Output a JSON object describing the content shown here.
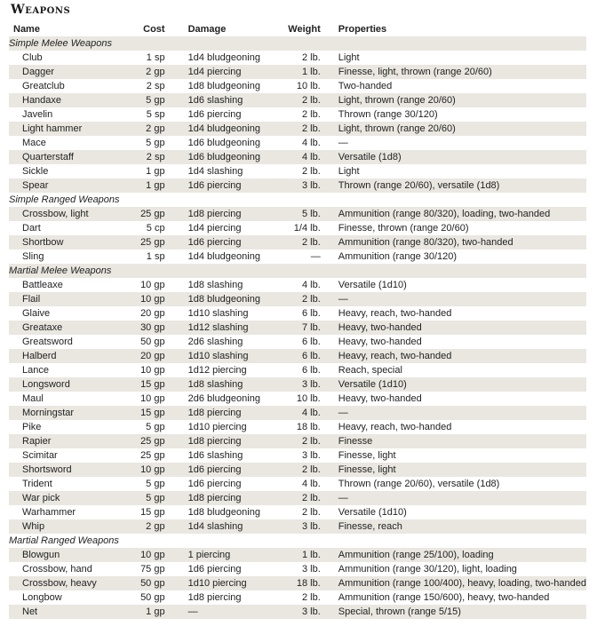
{
  "title": "Weapons",
  "columns": [
    "Name",
    "Cost",
    "Damage",
    "Weight",
    "Properties"
  ],
  "sections": [
    {
      "name": "Simple Melee Weapons",
      "rows": [
        [
          "Club",
          "1 sp",
          "1d4 bludgeoning",
          "2 lb.",
          "Light"
        ],
        [
          "Dagger",
          "2 gp",
          "1d4 piercing",
          "1 lb.",
          "Finesse, light, thrown (range 20/60)"
        ],
        [
          "Greatclub",
          "2 sp",
          "1d8 bludgeoning",
          "10 lb.",
          "Two-handed"
        ],
        [
          "Handaxe",
          "5 gp",
          "1d6 slashing",
          "2 lb.",
          "Light, thrown (range 20/60)"
        ],
        [
          "Javelin",
          "5 sp",
          "1d6 piercing",
          "2 lb.",
          "Thrown (range 30/120)"
        ],
        [
          "Light hammer",
          "2 gp",
          "1d4 bludgeoning",
          "2 lb.",
          "Light, thrown (range 20/60)"
        ],
        [
          "Mace",
          "5 gp",
          "1d6 bludgeoning",
          "4 lb.",
          "—"
        ],
        [
          "Quarterstaff",
          "2 sp",
          "1d6 bludgeoning",
          "4 lb.",
          "Versatile (1d8)"
        ],
        [
          "Sickle",
          "1 gp",
          "1d4 slashing",
          "2 lb.",
          "Light"
        ],
        [
          "Spear",
          "1 gp",
          "1d6 piercing",
          "3 lb.",
          "Thrown (range 20/60), versatile (1d8)"
        ]
      ]
    },
    {
      "name": "Simple Ranged Weapons",
      "rows": [
        [
          "Crossbow, light",
          "25 gp",
          "1d8 piercing",
          "5 lb.",
          "Ammunition (range 80/320), loading, two-handed"
        ],
        [
          "Dart",
          "5 cp",
          "1d4 piercing",
          "1/4 lb.",
          "Finesse, thrown (range 20/60)"
        ],
        [
          "Shortbow",
          "25 gp",
          "1d6 piercing",
          "2 lb.",
          "Ammunition (range 80/320), two-handed"
        ],
        [
          "Sling",
          "1 sp",
          "1d4 bludgeoning",
          "—",
          "Ammunition (range 30/120)"
        ]
      ]
    },
    {
      "name": "Martial Melee Weapons",
      "rows": [
        [
          "Battleaxe",
          "10 gp",
          "1d8 slashing",
          "4 lb.",
          "Versatile (1d10)"
        ],
        [
          "Flail",
          "10 gp",
          "1d8 bludgeoning",
          "2 lb.",
          "—"
        ],
        [
          "Glaive",
          "20 gp",
          "1d10 slashing",
          "6 lb.",
          "Heavy, reach, two-handed"
        ],
        [
          "Greataxe",
          "30 gp",
          "1d12 slashing",
          "7 lb.",
          "Heavy, two-handed"
        ],
        [
          "Greatsword",
          "50 gp",
          "2d6 slashing",
          "6 lb.",
          "Heavy, two-handed"
        ],
        [
          "Halberd",
          "20 gp",
          "1d10 slashing",
          "6 lb.",
          "Heavy, reach, two-handed"
        ],
        [
          "Lance",
          "10 gp",
          "1d12 piercing",
          "6 lb.",
          "Reach, special"
        ],
        [
          "Longsword",
          "15 gp",
          "1d8 slashing",
          "3 lb.",
          "Versatile (1d10)"
        ],
        [
          "Maul",
          "10 gp",
          "2d6 bludgeoning",
          "10 lb.",
          "Heavy, two-handed"
        ],
        [
          "Morningstar",
          "15 gp",
          "1d8 piercing",
          "4 lb.",
          "—"
        ],
        [
          "Pike",
          "5 gp",
          "1d10 piercing",
          "18 lb.",
          "Heavy, reach, two-handed"
        ],
        [
          "Rapier",
          "25 gp",
          "1d8 piercing",
          "2 lb.",
          "Finesse"
        ],
        [
          "Scimitar",
          "25 gp",
          "1d6 slashing",
          "3 lb.",
          "Finesse, light"
        ],
        [
          "Shortsword",
          "10 gp",
          "1d6 piercing",
          "2 lb.",
          "Finesse, light"
        ],
        [
          "Trident",
          "5 gp",
          "1d6 piercing",
          "4 lb.",
          "Thrown (range 20/60), versatile (1d8)"
        ],
        [
          "War pick",
          "5 gp",
          "1d8 piercing",
          "2 lb.",
          "—"
        ],
        [
          "Warhammer",
          "15 gp",
          "1d8 bludgeoning",
          "2 lb.",
          "Versatile (1d10)"
        ],
        [
          "Whip",
          "2 gp",
          "1d4 slashing",
          "3 lb.",
          "Finesse, reach"
        ]
      ]
    },
    {
      "name": "Martial Ranged Weapons",
      "rows": [
        [
          "Blowgun",
          "10 gp",
          "1 piercing",
          "1 lb.",
          "Ammunition (range 25/100), loading"
        ],
        [
          "Crossbow, hand",
          "75 gp",
          "1d6 piercing",
          "3 lb.",
          "Ammunition (range 30/120), light, loading"
        ],
        [
          "Crossbow, heavy",
          "50 gp",
          "1d10 piercing",
          "18 lb.",
          "Ammunition (range 100/400), heavy, loading, two-handed"
        ],
        [
          "Longbow",
          "50 gp",
          "1d8 piercing",
          "2 lb.",
          "Ammunition (range 150/600), heavy, two-handed"
        ],
        [
          "Net",
          "1 gp",
          "—",
          "3 lb.",
          "Special, thrown (range 5/15)"
        ]
      ]
    }
  ]
}
